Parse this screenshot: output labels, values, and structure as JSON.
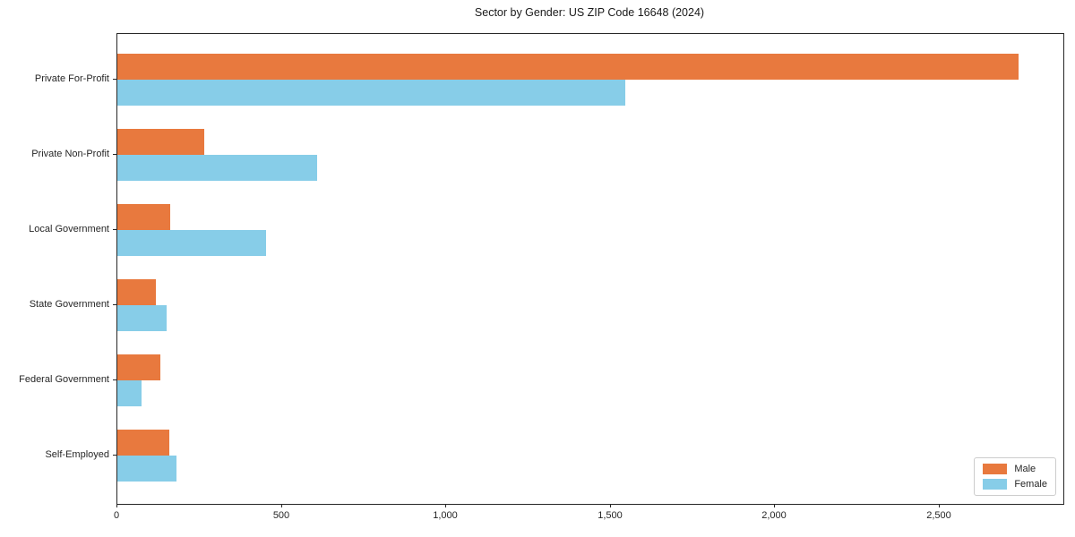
{
  "chart_data": {
    "type": "bar",
    "orientation": "horizontal",
    "title": "Sector by Gender: US ZIP Code 16648 (2024)",
    "categories": [
      "Private For-Profit",
      "Private Non-Profit",
      "Local Government",
      "State Government",
      "Federal Government",
      "Self-Employed"
    ],
    "series": [
      {
        "name": "Male",
        "color": "#E8793E",
        "values": [
          2740,
          264,
          161,
          117,
          131,
          158
        ]
      },
      {
        "name": "Female",
        "color": "#87CDE8",
        "values": [
          1544,
          607,
          452,
          150,
          74,
          180
        ]
      }
    ],
    "xlabel": "",
    "ylabel": "",
    "xlim": [
      0,
      2876
    ],
    "x_ticks": [
      0,
      500,
      1000,
      1500,
      2000,
      2500
    ],
    "x_tick_labels": [
      "0",
      "500",
      "1,000",
      "1,500",
      "2,000",
      "2,500"
    ],
    "grid": false,
    "legend_position": "lower right",
    "colors": {
      "male": "#E8793E",
      "female": "#87CDE8",
      "axis": "#262626",
      "text": "#1a1a1a",
      "legend_border": "#cccccc",
      "background": "#ffffff"
    }
  }
}
